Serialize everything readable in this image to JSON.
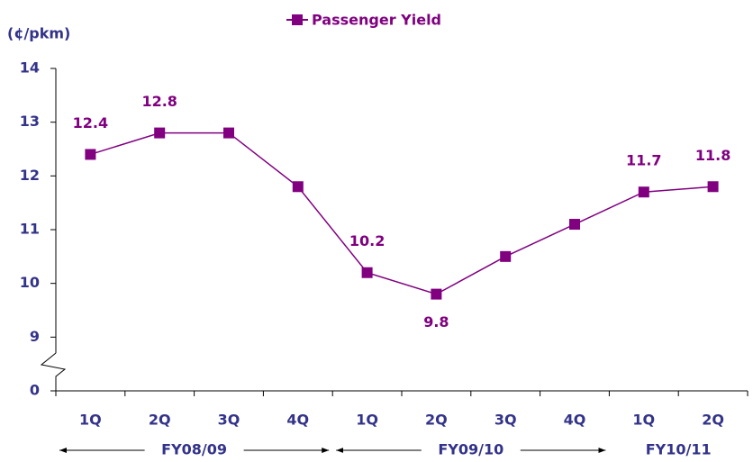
{
  "chart_data": {
    "type": "line",
    "y_label": "(¢/pkm)",
    "categories": [
      "1Q",
      "2Q",
      "3Q",
      "4Q",
      "1Q",
      "2Q",
      "3Q",
      "4Q",
      "1Q",
      "2Q"
    ],
    "groups": [
      {
        "name": "FY08/09",
        "categories": 4
      },
      {
        "name": "FY09/10",
        "categories": 4
      },
      {
        "name": "FY10/11",
        "categories": 2
      }
    ],
    "series": [
      {
        "name": "Passenger Yield",
        "color": "#800080",
        "values": [
          12.4,
          12.8,
          12.8,
          11.8,
          10.2,
          9.8,
          10.5,
          11.1,
          11.7,
          11.8
        ],
        "value_labels": [
          "12.4",
          "12.8",
          null,
          null,
          "10.2",
          "9.8",
          null,
          null,
          "11.7",
          "11.8"
        ]
      }
    ],
    "ylim": [
      0,
      14
    ],
    "axis_break": [
      0,
      9
    ],
    "yticks": [
      0,
      9,
      10,
      11,
      12,
      13,
      14
    ],
    "legend": "top"
  }
}
